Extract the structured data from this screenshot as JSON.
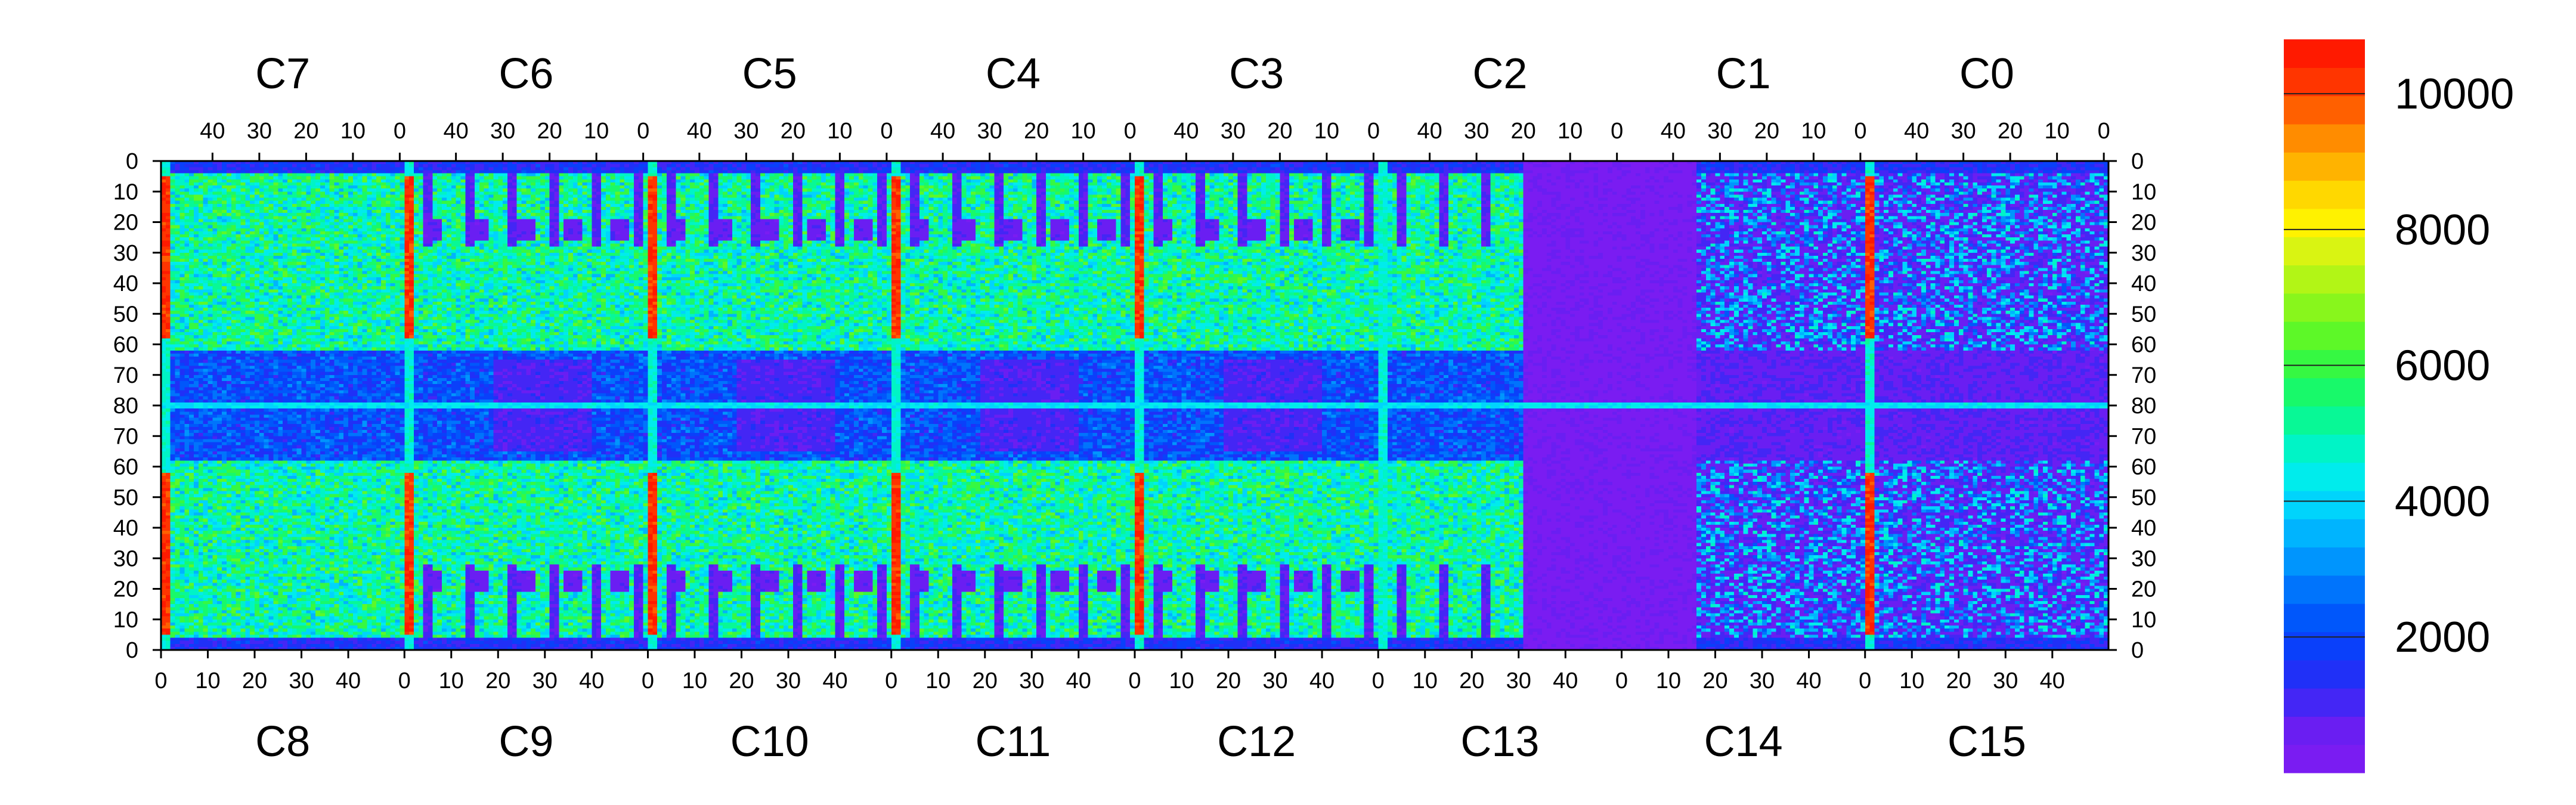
{
  "chart_data": {
    "type": "heatmap",
    "chips_top": [
      "C7",
      "C6",
      "C5",
      "C4",
      "C3",
      "C2",
      "C1",
      "C0"
    ],
    "chips_bottom": [
      "C8",
      "C9",
      "C10",
      "C11",
      "C12",
      "C13",
      "C14",
      "C15"
    ],
    "top_axis_ticks": [
      "40",
      "30",
      "20",
      "10",
      "0"
    ],
    "bottom_axis_ticks": [
      "0",
      "10",
      "20",
      "30",
      "40"
    ],
    "left_axis_ticks": [
      "0",
      "10",
      "20",
      "30",
      "40",
      "50",
      "60",
      "70",
      "80",
      "70",
      "60",
      "50",
      "40",
      "30",
      "20",
      "10",
      "0"
    ],
    "right_axis_ticks": [
      "0",
      "10",
      "20",
      "30",
      "40",
      "50",
      "60",
      "70",
      "80",
      "70",
      "60",
      "50",
      "40",
      "30",
      "20",
      "10",
      "0"
    ],
    "columns_per_chip": 52,
    "rows_per_half": 80,
    "colorbar": {
      "min": 0,
      "max": 10800,
      "ticks": [
        2000,
        4000,
        6000,
        8000,
        10000
      ],
      "tick_labels": [
        "2000",
        "4000",
        "6000",
        "8000",
        "10000"
      ],
      "colors": [
        "#7a1cf2",
        "#6a1ef2",
        "#4426f5",
        "#2030f7",
        "#0a40fa",
        "#0057fb",
        "#0074fc",
        "#0095fd",
        "#00b4fe",
        "#00d4fc",
        "#00ecec",
        "#00f4c6",
        "#08f896",
        "#18f96a",
        "#36f842",
        "#5df828",
        "#88f61c",
        "#b2f516",
        "#d9f412",
        "#fff200",
        "#ffd800",
        "#ffb300",
        "#ff8c00",
        "#ff6000",
        "#ff3500",
        "#ff1a00"
      ]
    },
    "features": {
      "hot_columns": [
        {
          "chip": "C7",
          "col": 1,
          "value": 10200
        },
        {
          "chip": "C6",
          "col": 1,
          "value": 10200
        },
        {
          "chip": "C5",
          "col": 1,
          "value": 10200
        },
        {
          "chip": "C4",
          "col": 1,
          "value": 10200
        },
        {
          "chip": "C3",
          "col": 1,
          "value": 10200
        },
        {
          "chip": "C1",
          "col": 1,
          "value": 10200
        },
        {
          "chip": "C0",
          "col": 1,
          "value": 10200
        }
      ],
      "dead_region": {
        "chip_from": "C2",
        "chip_to": "C14",
        "value": 300
      }
    }
  }
}
